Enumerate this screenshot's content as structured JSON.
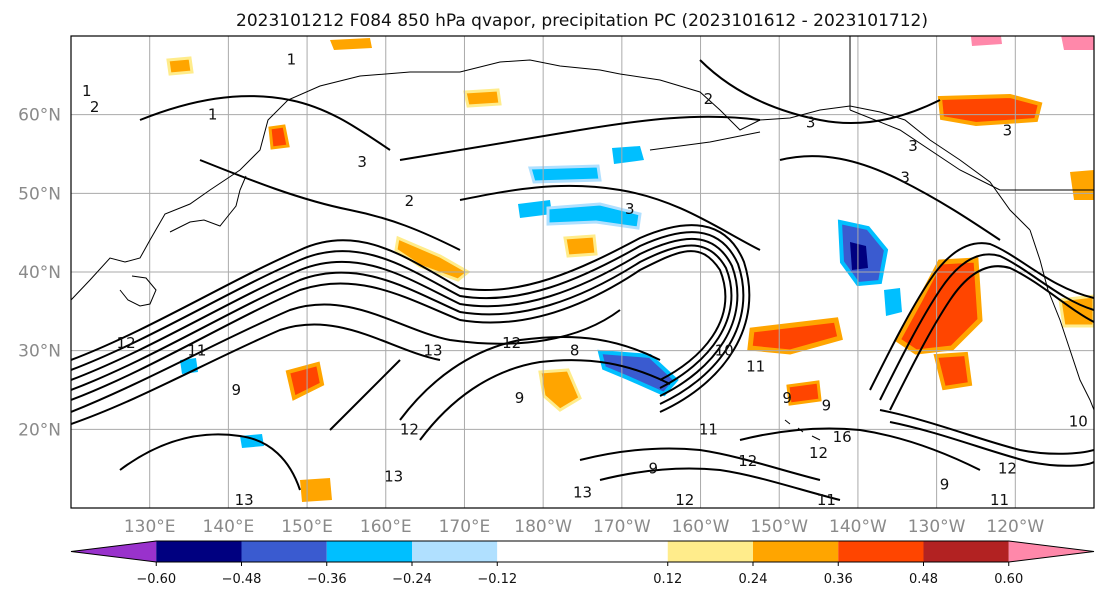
{
  "title": "2023101212 F084 850 hPa qvapor, precipitation PC (2023101612 - 2023101712)",
  "map": {
    "lon_range": [
      120,
      250
    ],
    "lat_range": [
      10,
      70
    ],
    "lat_ticks": [
      {
        "value": 20,
        "label": "20°N"
      },
      {
        "value": 30,
        "label": "30°N"
      },
      {
        "value": 40,
        "label": "40°N"
      },
      {
        "value": 50,
        "label": "50°N"
      },
      {
        "value": 60,
        "label": "60°N"
      }
    ],
    "lon_ticks": [
      {
        "value": 130,
        "label": "130°E"
      },
      {
        "value": 140,
        "label": "140°E"
      },
      {
        "value": 150,
        "label": "150°E"
      },
      {
        "value": 160,
        "label": "160°E"
      },
      {
        "value": 170,
        "label": "170°E"
      },
      {
        "value": 180,
        "label": "180°W"
      },
      {
        "value": 190,
        "label": "170°W"
      },
      {
        "value": 200,
        "label": "160°W"
      },
      {
        "value": 210,
        "label": "150°W"
      },
      {
        "value": 220,
        "label": "140°W"
      },
      {
        "value": 230,
        "label": "130°W"
      },
      {
        "value": 240,
        "label": "120°W"
      }
    ],
    "contour_labels": [
      {
        "text": "1",
        "lon": 148,
        "lat": 67
      },
      {
        "text": "1",
        "lon": 122,
        "lat": 63
      },
      {
        "text": "2",
        "lon": 123,
        "lat": 61
      },
      {
        "text": "1",
        "lon": 138,
        "lat": 60
      },
      {
        "text": "3",
        "lon": 157,
        "lat": 54
      },
      {
        "text": "2",
        "lon": 163,
        "lat": 49
      },
      {
        "text": "2",
        "lon": 201,
        "lat": 62
      },
      {
        "text": "3",
        "lon": 214,
        "lat": 59
      },
      {
        "text": "3",
        "lon": 227,
        "lat": 56
      },
      {
        "text": "3",
        "lon": 226,
        "lat": 52
      },
      {
        "text": "3",
        "lon": 239,
        "lat": 58
      },
      {
        "text": "3",
        "lon": 191,
        "lat": 48
      },
      {
        "text": "12",
        "lon": 127,
        "lat": 31
      },
      {
        "text": "11",
        "lon": 136,
        "lat": 30
      },
      {
        "text": "9",
        "lon": 141,
        "lat": 25
      },
      {
        "text": "13",
        "lon": 166,
        "lat": 30
      },
      {
        "text": "12",
        "lon": 176,
        "lat": 31
      },
      {
        "text": "8",
        "lon": 184,
        "lat": 30
      },
      {
        "text": "9",
        "lon": 177,
        "lat": 24
      },
      {
        "text": "12",
        "lon": 163,
        "lat": 20
      },
      {
        "text": "13",
        "lon": 161,
        "lat": 14
      },
      {
        "text": "13",
        "lon": 142,
        "lat": 11
      },
      {
        "text": "10",
        "lon": 203,
        "lat": 30
      },
      {
        "text": "11",
        "lon": 207,
        "lat": 28
      },
      {
        "text": "9",
        "lon": 211,
        "lat": 24
      },
      {
        "text": "9",
        "lon": 216,
        "lat": 23
      },
      {
        "text": "11",
        "lon": 201,
        "lat": 20
      },
      {
        "text": "12",
        "lon": 206,
        "lat": 16
      },
      {
        "text": "12",
        "lon": 215,
        "lat": 17
      },
      {
        "text": "16",
        "lon": 218,
        "lat": 19
      },
      {
        "text": "11",
        "lon": 216,
        "lat": 11
      },
      {
        "text": "13",
        "lon": 185,
        "lat": 12
      },
      {
        "text": "9",
        "lon": 194,
        "lat": 15
      },
      {
        "text": "12",
        "lon": 198,
        "lat": 11
      },
      {
        "text": "12",
        "lon": 239,
        "lat": 15
      },
      {
        "text": "9",
        "lon": 231,
        "lat": 13
      },
      {
        "text": "11",
        "lon": 238,
        "lat": 11
      },
      {
        "text": "10",
        "lon": 248,
        "lat": 21
      }
    ]
  },
  "colorbar": {
    "colors": [
      "#9932cc",
      "#000080",
      "#3a5bd0",
      "#00bfff",
      "#b0e0ff",
      "#ffffff",
      "#ffec8b",
      "#ffa500",
      "#ff4500",
      "#b22222",
      "#ff88aa"
    ],
    "boundaries": [
      -0.72,
      -0.6,
      -0.48,
      -0.36,
      -0.24,
      -0.12,
      0.12,
      0.24,
      0.36,
      0.48,
      0.6,
      0.72
    ],
    "tick_labels": [
      "−0.60",
      "−0.48",
      "−0.36",
      "−0.24",
      "−0.12",
      "0.12",
      "0.24",
      "0.36",
      "0.48",
      "0.60"
    ]
  }
}
